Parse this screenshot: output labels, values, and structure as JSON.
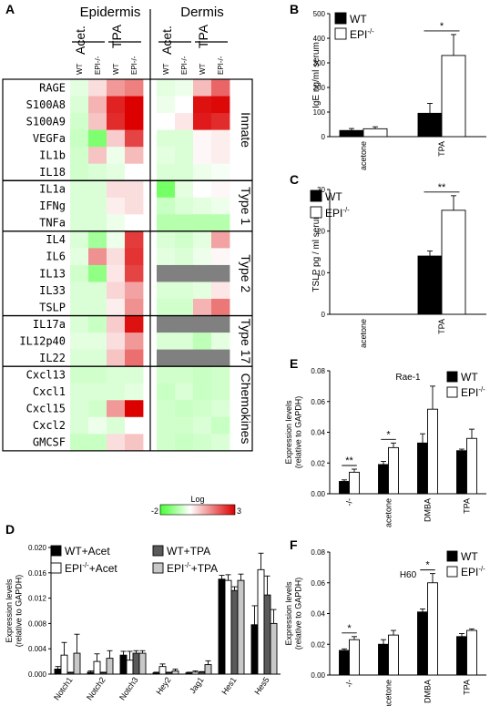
{
  "panel_letters": [
    "A",
    "B",
    "C",
    "D",
    "E",
    "F"
  ],
  "heatmap": {
    "groups": [
      "Epidermis",
      "Dermis"
    ],
    "treatments": [
      "Acet.",
      "TPA"
    ],
    "genotypes": [
      "WT",
      "EPI-/-"
    ],
    "rows": [
      "RAGE",
      "S100A8",
      "S100A9",
      "VEGFa",
      "IL1b",
      "IL18",
      "IL1a",
      "IFNg",
      "TNFa",
      "IL4",
      "IL6",
      "IL13",
      "IL33",
      "TSLP",
      "IL17a",
      "IL12p40",
      "IL22",
      "Cxcl13",
      "Cxcl1",
      "Cxcl15",
      "Cxcl2",
      "GMCSF"
    ],
    "categories": [
      {
        "name": "Innate",
        "rows": 6
      },
      {
        "name": "Type 1",
        "rows": 3
      },
      {
        "name": "Type 2",
        "rows": 5
      },
      {
        "name": "Type 17",
        "rows": 3
      },
      {
        "name": "Chemokines",
        "rows": 5
      }
    ],
    "scale": {
      "min_label": "-2",
      "max_label": "3",
      "title": "Log",
      "min": -2,
      "max": 3
    },
    "values": [
      [
        -0.3,
        0.4,
        1.2,
        1.5,
        -0.3,
        -0.2,
        0.8,
        1.8
      ],
      [
        -0.4,
        0.9,
        2.6,
        3.0,
        -0.2,
        0.0,
        2.8,
        2.9
      ],
      [
        -0.5,
        0.7,
        2.5,
        3.0,
        0.0,
        0.3,
        2.7,
        2.5
      ],
      [
        -0.6,
        -1.4,
        0.6,
        2.2,
        -0.4,
        -0.4,
        0.1,
        0.2
      ],
      [
        -0.5,
        0.7,
        -0.2,
        0.8,
        -0.3,
        -0.4,
        0.1,
        0.2
      ],
      [
        -0.5,
        -0.4,
        -0.3,
        0.0,
        -0.4,
        -0.4,
        -0.2,
        -0.1
      ],
      [
        -0.4,
        -0.4,
        0.4,
        0.4,
        -1.5,
        -0.3,
        0.0,
        0.1
      ],
      [
        -0.4,
        -0.4,
        0.2,
        0.4,
        -0.6,
        -0.4,
        -0.3,
        -0.2
      ],
      [
        -0.4,
        -0.4,
        -0.2,
        0.0,
        -0.8,
        -0.8,
        -0.8,
        -0.8
      ],
      [
        -0.4,
        -1.0,
        -0.2,
        2.3,
        -0.4,
        -0.5,
        -0.3,
        1.1
      ],
      [
        -0.3,
        1.3,
        0.4,
        2.4,
        -0.3,
        -0.4,
        -0.2,
        0.1
      ],
      [
        -0.5,
        -1.2,
        0.3,
        2.2,
        null,
        null,
        null,
        null
      ],
      [
        -0.4,
        -0.4,
        0.5,
        1.1,
        -0.4,
        -0.4,
        -0.3,
        0.3
      ],
      [
        -0.4,
        -0.4,
        0.2,
        1.3,
        -0.5,
        -0.5,
        0.9,
        1.6
      ],
      [
        -0.4,
        -0.6,
        0.6,
        2.8,
        null,
        null,
        null,
        null
      ],
      [
        -0.3,
        -0.3,
        0.4,
        1.2,
        -0.4,
        -0.4,
        -0.7,
        -0.3
      ],
      [
        -0.4,
        -0.4,
        0.7,
        1.7,
        null,
        null,
        null,
        null
      ],
      [
        -0.5,
        -0.5,
        -0.4,
        -0.4,
        -0.5,
        -0.5,
        -0.6,
        -0.5
      ],
      [
        -0.4,
        -0.4,
        -0.4,
        -0.3,
        -0.6,
        -0.4,
        -0.6,
        -0.5
      ],
      [
        -0.4,
        -0.5,
        1.2,
        3.0,
        -0.5,
        -0.6,
        -0.5,
        -0.4
      ],
      [
        -0.4,
        -0.2,
        -0.4,
        0.0,
        -0.5,
        -0.5,
        -0.4,
        -0.6
      ],
      [
        -0.6,
        -0.6,
        0.4,
        0.7,
        -0.5,
        -0.6,
        -0.5,
        -0.4
      ]
    ]
  },
  "chart_data": [
    {
      "panel": "B",
      "type": "bar",
      "categories": [
        "acetone",
        "TPA"
      ],
      "ylabel": "IgE ng/ml serum",
      "ylim": [
        0,
        500
      ],
      "yticks": [
        0,
        100,
        200,
        300,
        400,
        500
      ],
      "series": [
        {
          "name": "WT",
          "values": [
            25,
            95
          ],
          "errors": [
            8,
            40
          ]
        },
        {
          "name": "EPI-/-",
          "values": [
            32,
            330
          ],
          "errors": [
            8,
            85
          ]
        }
      ],
      "significance": [
        {
          "category": "TPA",
          "label": "*"
        }
      ]
    },
    {
      "panel": "C",
      "type": "bar",
      "categories": [
        "acetone",
        "TPA"
      ],
      "ylabel": "TSLP pg / ml serum",
      "ylim": [
        0,
        30
      ],
      "yticks": [
        0,
        10,
        20,
        30
      ],
      "series": [
        {
          "name": "WT",
          "values": [
            0,
            14
          ],
          "errors": [
            0,
            1.2
          ]
        },
        {
          "name": "EPI-/-",
          "values": [
            0,
            25
          ],
          "errors": [
            0,
            3.5
          ]
        }
      ],
      "significance": [
        {
          "category": "TPA",
          "label": "**"
        }
      ]
    },
    {
      "panel": "D",
      "type": "bar",
      "categories": [
        "Notch1",
        "Notch2",
        "Notch3",
        "Hey2",
        "Jag1",
        "Hes1",
        "Hes5"
      ],
      "ylabel": "Expression levels\n(relative to GAPDH)",
      "ylim": [
        0,
        0.02
      ],
      "yticks": [
        "0.000",
        "0.004",
        "0.008",
        "0.012",
        "0.016",
        "0.020"
      ],
      "series": [
        {
          "name": "WT+Acet",
          "values": [
            0.0008,
            0.0003,
            0.003,
            0.0002,
            0.0002,
            0.015,
            0.0078
          ],
          "errors": [
            0.0004,
            0.0002,
            0.0006,
            0.0001,
            0.0001,
            0.0006,
            0.003
          ]
        },
        {
          "name": "EPI-/-+Acet",
          "values": [
            0.003,
            0.002,
            0.0022,
            0.0012,
            0.0003,
            0.0148,
            0.0165
          ],
          "errors": [
            0.002,
            0.0012,
            0.0014,
            0.0004,
            0.0002,
            0.0009,
            0.0026
          ]
        },
        {
          "name": "WT+TPA",
          "values": [
            0.0002,
            0.0002,
            0.0033,
            0.0002,
            0.0003,
            0.0132,
            0.0125
          ],
          "errors": [
            0.0001,
            0.0001,
            0.0004,
            0.0001,
            0.0001,
            0.0006,
            0.003
          ]
        },
        {
          "name": "EPI-/-+TPA",
          "values": [
            0.0033,
            0.0025,
            0.0033,
            0.0005,
            0.0015,
            0.0148,
            0.008
          ],
          "errors": [
            0.003,
            0.0012,
            0.0004,
            0.0003,
            0.0006,
            0.001,
            0.0022
          ]
        }
      ],
      "legend": [
        "WT+Acet",
        "WT+TPA",
        "EPI-/-+Acet",
        "EPI-/-+TPA"
      ]
    },
    {
      "panel": "E",
      "type": "bar",
      "title": "Rae-1",
      "categories": [
        "-/-",
        "acetone",
        "DMBA",
        "TPA"
      ],
      "ylabel": "Expression levels\n(relative to GAPDH)",
      "ylim": [
        0,
        0.08
      ],
      "yticks": [
        "0.00",
        "0.02",
        "0.04",
        "0.06",
        "0.08"
      ],
      "series": [
        {
          "name": "WT",
          "values": [
            0.008,
            0.019,
            0.033,
            0.028
          ],
          "errors": [
            0.001,
            0.002,
            0.006,
            0.001
          ]
        },
        {
          "name": "EPI-/-",
          "values": [
            0.014,
            0.03,
            0.055,
            0.036
          ],
          "errors": [
            0.002,
            0.003,
            0.015,
            0.006
          ]
        }
      ],
      "significance": [
        {
          "category": "-/-",
          "label": "**"
        },
        {
          "category": "acetone",
          "label": "*"
        }
      ]
    },
    {
      "panel": "F",
      "type": "bar",
      "title": "H60",
      "categories": [
        "-/-",
        "acetone",
        "DMBA",
        "TPA"
      ],
      "ylabel": "Expression levels\n(relative to GAPDH)",
      "ylim": [
        0,
        0.08
      ],
      "yticks": [
        "0.00",
        "0.02",
        "0.04",
        "0.06",
        "0.08"
      ],
      "series": [
        {
          "name": "WT",
          "values": [
            0.016,
            0.02,
            0.041,
            0.025
          ],
          "errors": [
            0.001,
            0.003,
            0.002,
            0.002
          ]
        },
        {
          "name": "EPI-/-",
          "values": [
            0.023,
            0.026,
            0.06,
            0.029
          ],
          "errors": [
            0.002,
            0.003,
            0.006,
            0.001
          ]
        }
      ],
      "significance": [
        {
          "category": "-/-",
          "label": "*"
        },
        {
          "category": "DMBA",
          "label": "*"
        }
      ]
    }
  ]
}
